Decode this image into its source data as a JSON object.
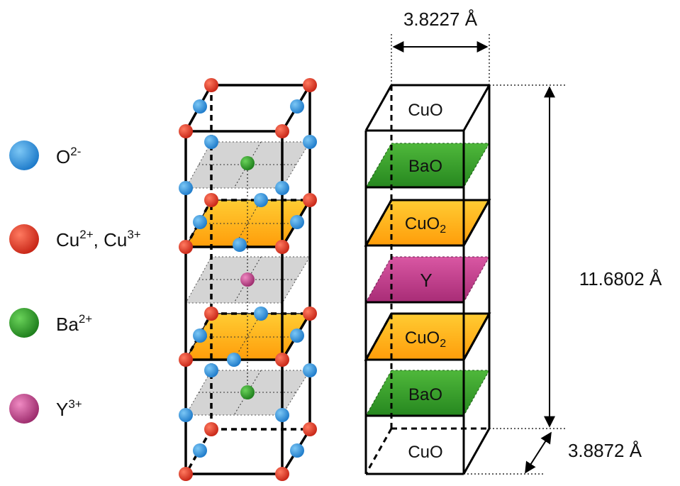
{
  "legend": [
    {
      "label": "O",
      "sup": "2-",
      "color": "#2f9be3"
    },
    {
      "label": "Cu",
      "sup": "2+",
      "label2": ", Cu",
      "sup2": "3+",
      "color": "#e23b2a"
    },
    {
      "label": "Ba",
      "sup": "2+",
      "color": "#2ea62a"
    },
    {
      "label": "Y",
      "sup": "3+",
      "color": "#c6438f"
    }
  ],
  "layers": [
    {
      "label": "CuO",
      "sub": "",
      "color": "none"
    },
    {
      "label": "BaO",
      "sub": "",
      "color": "#3aa12c"
    },
    {
      "label": "CuO",
      "sub": "2",
      "color": "#ffb21a"
    },
    {
      "label": "Y",
      "sub": "",
      "color": "#c23f8e"
    },
    {
      "label": "CuO",
      "sub": "2",
      "color": "#ffb21a"
    },
    {
      "label": "BaO",
      "sub": "",
      "color": "#3aa12c"
    },
    {
      "label": "CuO",
      "sub": "",
      "color": "none"
    }
  ],
  "dimensions": {
    "a": "3.8227 Å",
    "c": "11.6802 Å",
    "b": "3.8872 Å"
  },
  "colors": {
    "oxygen": "#2f9be3",
    "copper": "#e23b2a",
    "barium": "#2ea62a",
    "yttrium": "#c6438f",
    "plane_gray": "#d4d4d4",
    "cuo2_plane": "#ffb21a",
    "bao_plane": "#3aa12c",
    "y_plane": "#c23f8e"
  }
}
